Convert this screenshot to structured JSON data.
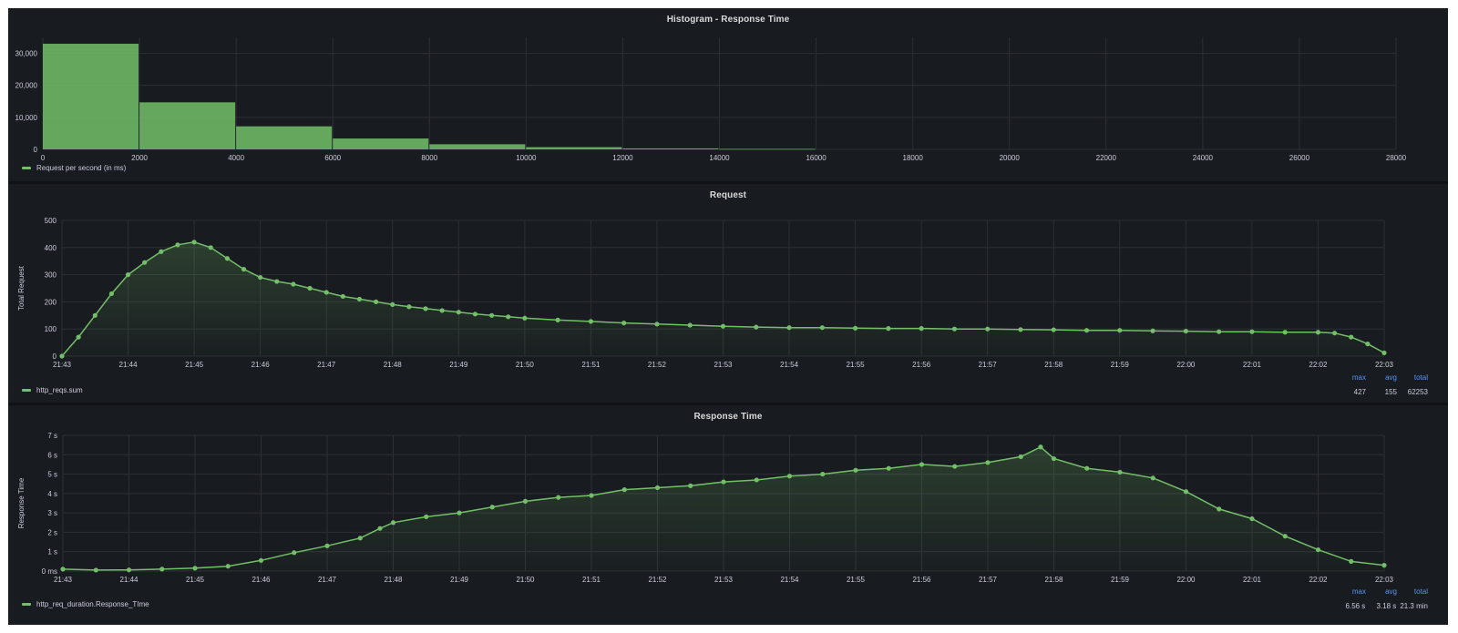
{
  "colors": {
    "series": "#73bf69",
    "grid": "#2c2f35",
    "axis_text": "#ccccdc",
    "stat_header": "#5794f2"
  },
  "panels": [
    {
      "title": "Histogram - Response Time",
      "legend": "Request per second (in ms)"
    },
    {
      "title": "Request",
      "legend": "http_reqs.sum",
      "stats_headers": [
        "max",
        "avg",
        "total"
      ],
      "stats_values": [
        "427",
        "155",
        "62253"
      ]
    },
    {
      "title": "Response Time",
      "legend": "http_req_duration.Response_TIme",
      "stats_headers": [
        "max",
        "avg",
        "total"
      ],
      "stats_values": [
        "6.56 s",
        "3.18 s",
        "21.3 min"
      ]
    }
  ],
  "chart_data": [
    {
      "type": "bar",
      "title": "Histogram - Response Time",
      "x_ticks": [
        "0",
        "2000",
        "4000",
        "6000",
        "8000",
        "10000",
        "12000",
        "14000",
        "16000",
        "18000",
        "20000",
        "22000",
        "24000",
        "26000",
        "28000"
      ],
      "y_ticks": [
        "0",
        "10,000",
        "20,000",
        "30,000"
      ],
      "xlim": [
        0,
        28000
      ],
      "ylim": [
        0,
        35000
      ],
      "bins": [
        {
          "from": 0,
          "to": 2000,
          "value": 33000
        },
        {
          "from": 2000,
          "to": 4000,
          "value": 14700
        },
        {
          "from": 4000,
          "to": 6000,
          "value": 7200
        },
        {
          "from": 6000,
          "to": 8000,
          "value": 3400
        },
        {
          "from": 8000,
          "to": 10000,
          "value": 1600
        },
        {
          "from": 10000,
          "to": 12000,
          "value": 700
        },
        {
          "from": 12000,
          "to": 14000,
          "value": 300
        },
        {
          "from": 14000,
          "to": 16000,
          "value": 150
        }
      ],
      "series": [
        {
          "name": "Request per second (in ms)"
        }
      ]
    },
    {
      "type": "line",
      "title": "Request",
      "ylabel": "Total Request",
      "x_ticks": [
        "21:43",
        "21:44",
        "21:45",
        "21:46",
        "21:47",
        "21:48",
        "21:49",
        "21:50",
        "21:51",
        "21:52",
        "21:53",
        "21:54",
        "21:55",
        "21:56",
        "21:57",
        "21:58",
        "21:59",
        "22:00",
        "22:01",
        "22:02",
        "22:03"
      ],
      "y_ticks": [
        "0",
        "100",
        "200",
        "300",
        "400",
        "500"
      ],
      "ylim": [
        0,
        500
      ],
      "x": [
        0,
        0.25,
        0.5,
        0.75,
        1,
        1.25,
        1.5,
        1.75,
        2,
        2.25,
        2.5,
        2.75,
        3,
        3.25,
        3.5,
        3.75,
        4,
        4.25,
        4.5,
        4.75,
        5,
        5.25,
        5.5,
        5.75,
        6,
        6.25,
        6.5,
        6.75,
        7,
        7.5,
        8,
        8.5,
        9,
        9.5,
        10,
        10.5,
        11,
        11.5,
        12,
        12.5,
        13,
        13.5,
        14,
        14.5,
        15,
        15.5,
        16,
        16.5,
        17,
        17.5,
        18,
        18.5,
        19,
        19.25,
        19.5,
        19.75,
        20
      ],
      "series": [
        {
          "name": "http_reqs.sum",
          "values": [
            0,
            70,
            150,
            230,
            300,
            345,
            385,
            410,
            420,
            400,
            360,
            320,
            290,
            275,
            265,
            250,
            235,
            220,
            210,
            200,
            190,
            182,
            175,
            168,
            162,
            155,
            150,
            145,
            140,
            133,
            128,
            122,
            118,
            114,
            110,
            107,
            105,
            105,
            103,
            102,
            102,
            100,
            100,
            98,
            97,
            95,
            95,
            93,
            92,
            90,
            90,
            88,
            88,
            85,
            70,
            45,
            12
          ]
        }
      ]
    },
    {
      "type": "line",
      "title": "Response Time",
      "ylabel": "Response Time",
      "x_ticks": [
        "21:43",
        "21:44",
        "21:45",
        "21:46",
        "21:47",
        "21:48",
        "21:49",
        "21:50",
        "21:51",
        "21:52",
        "21:53",
        "21:54",
        "21:55",
        "21:56",
        "21:57",
        "21:58",
        "21:59",
        "22:00",
        "22:01",
        "22:02",
        "22:03"
      ],
      "y_ticks": [
        "0 ms",
        "1 s",
        "2 s",
        "3 s",
        "4 s",
        "5 s",
        "6 s",
        "7 s"
      ],
      "ylim": [
        0,
        7
      ],
      "x": [
        0,
        0.5,
        1,
        1.5,
        2,
        2.5,
        3,
        3.5,
        4,
        4.5,
        4.8,
        5,
        5.5,
        6,
        6.5,
        7,
        7.5,
        8,
        8.5,
        9,
        9.5,
        10,
        10.5,
        11,
        11.5,
        12,
        12.5,
        13,
        13.5,
        14,
        14.5,
        14.8,
        15,
        15.5,
        16,
        16.5,
        17,
        17.5,
        18,
        18.5,
        19,
        19.5,
        20
      ],
      "series": [
        {
          "name": "http_req_duration.Response_TIme",
          "values": [
            0.1,
            0.05,
            0.06,
            0.1,
            0.15,
            0.25,
            0.55,
            0.95,
            1.3,
            1.7,
            2.2,
            2.5,
            2.8,
            3.0,
            3.3,
            3.6,
            3.8,
            3.9,
            4.2,
            4.3,
            4.4,
            4.6,
            4.7,
            4.9,
            5.0,
            5.2,
            5.3,
            5.5,
            5.4,
            5.6,
            5.9,
            6.4,
            5.8,
            5.3,
            5.1,
            4.8,
            4.1,
            3.2,
            2.7,
            1.8,
            1.1,
            0.5,
            0.3
          ]
        }
      ]
    }
  ]
}
